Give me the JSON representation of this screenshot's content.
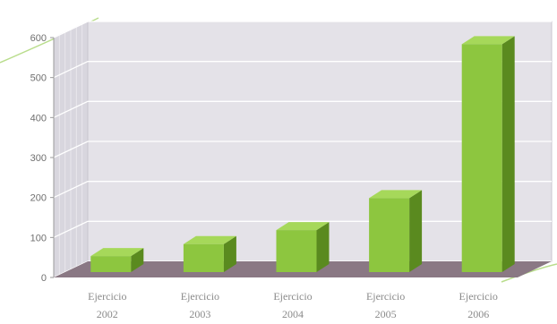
{
  "chart_data": {
    "type": "bar",
    "categories": [
      [
        "Ejercicio",
        "2002"
      ],
      [
        "Ejercicio",
        "2003"
      ],
      [
        "Ejercicio",
        "2004"
      ],
      [
        "Ejercicio",
        "2005"
      ],
      [
        "Ejercicio",
        "2006"
      ]
    ],
    "values": [
      40,
      70,
      105,
      185,
      570
    ],
    "ylim": [
      0,
      600
    ],
    "yticks": [
      "0",
      "100",
      "200",
      "300",
      "400",
      "500",
      "600"
    ],
    "grid": true,
    "legend": "none",
    "colors": {
      "bar_front": "#8dc63f",
      "bar_top": "#a6d85a",
      "bar_side": "#5a8a1f",
      "back_wall": "#e4e2e8",
      "side_wall": "#d8d6de",
      "floor": "#8a7884",
      "grid": "#ffffff",
      "accent_swoosh": "#b9dd8c"
    }
  }
}
